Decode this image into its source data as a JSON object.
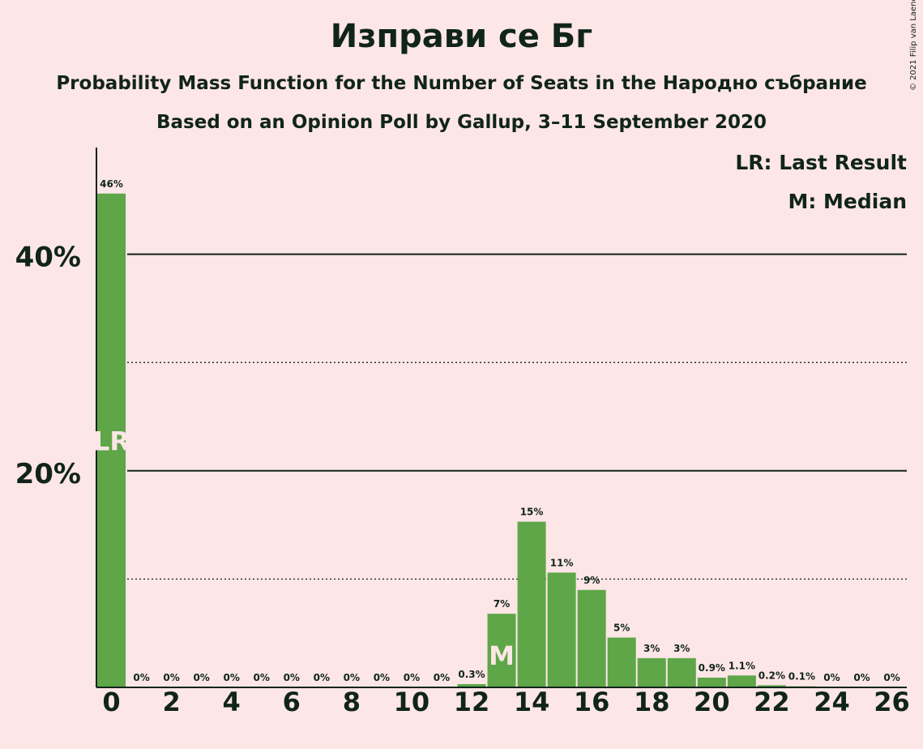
{
  "chart_data": {
    "type": "bar",
    "title": "Изправи се Бг",
    "subtitle": "Probability Mass Function for the Number of Seats in the Народно събрание",
    "subtitle2": "Based on an Opinion Poll by Gallup, 3–11 September 2020",
    "copyright": "© 2021 Filip van Laenen",
    "legend": [
      "LR: Last Result",
      "M: Median"
    ],
    "legend_position": "top-right",
    "x": [
      0,
      1,
      2,
      3,
      4,
      5,
      6,
      7,
      8,
      9,
      10,
      11,
      12,
      13,
      14,
      15,
      16,
      17,
      18,
      19,
      20,
      21,
      22,
      23,
      24,
      25,
      26
    ],
    "values": [
      45.6,
      0,
      0,
      0,
      0,
      0,
      0,
      0,
      0,
      0,
      0,
      0,
      0.3,
      6.8,
      15.3,
      10.6,
      9.0,
      4.6,
      2.7,
      2.7,
      0.9,
      1.1,
      0.2,
      0.1,
      0,
      0,
      0
    ],
    "value_labels": [
      "46%",
      "0%",
      "0%",
      "0%",
      "0%",
      "0%",
      "0%",
      "0%",
      "0%",
      "0%",
      "0%",
      "0%",
      "0.3%",
      "7%",
      "15%",
      "11%",
      "9%",
      "5%",
      "3%",
      "3%",
      "0.9%",
      "1.1%",
      "0.2%",
      "0.1%",
      "0%",
      "0%",
      "0%"
    ],
    "x_ticks": [
      0,
      2,
      4,
      6,
      8,
      10,
      12,
      14,
      16,
      18,
      20,
      22,
      24,
      26
    ],
    "y_ticks": [
      {
        "value": 20,
        "label": "20%"
      },
      {
        "value": 40,
        "label": "40%"
      }
    ],
    "minor_gridlines": [
      10,
      30
    ],
    "ylim": [
      0,
      50
    ],
    "last_result": {
      "x": 0,
      "label": "LR"
    },
    "median": {
      "x": 13,
      "label": "M"
    },
    "grid": true,
    "colors": {
      "bar": "#5ea648",
      "text": "#10241a",
      "background": "#fde6e6",
      "marker_text": "#fde6e6"
    }
  }
}
